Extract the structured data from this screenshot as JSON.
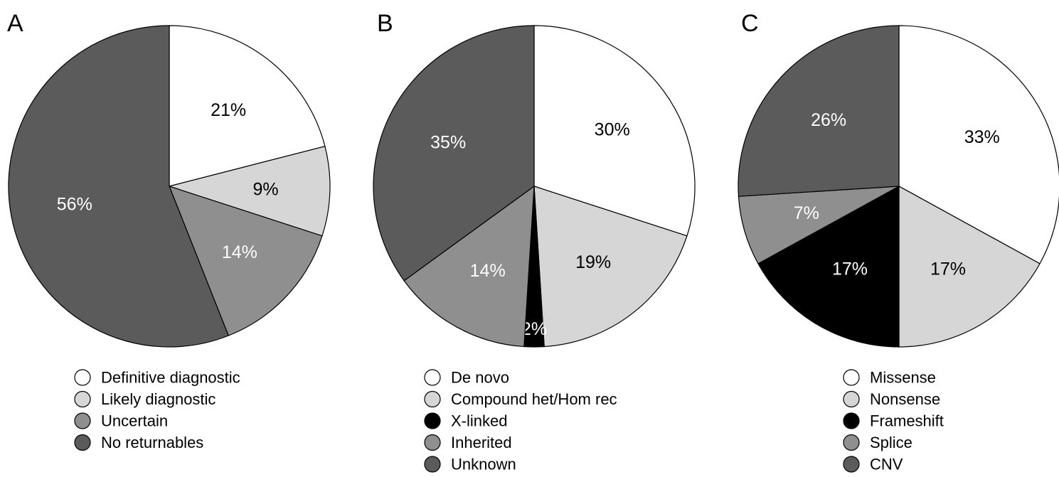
{
  "chart_data": [
    {
      "type": "pie",
      "panel": "A",
      "title": "",
      "slices": [
        {
          "label": "Definitive diagnostic",
          "value": 21,
          "text": "21%",
          "color": "#ffffff",
          "text_color": "#000000"
        },
        {
          "label": "Likely diagnostic",
          "value": 9,
          "text": "9%",
          "color": "#d6d6d6",
          "text_color": "#000000"
        },
        {
          "label": "Uncertain",
          "value": 14,
          "text": "14%",
          "color": "#8f8f8f",
          "text_color": "#ffffff"
        },
        {
          "label": "No returnables",
          "value": 56,
          "text": "56%",
          "color": "#5b5b5b",
          "text_color": "#ffffff"
        }
      ],
      "legend": "bottom"
    },
    {
      "type": "pie",
      "panel": "B",
      "title": "",
      "slices": [
        {
          "label": "De novo",
          "value": 30,
          "text": "30%",
          "color": "#ffffff",
          "text_color": "#000000"
        },
        {
          "label": "Compound het/Hom rec",
          "value": 19,
          "text": "19%",
          "color": "#d6d6d6",
          "text_color": "#000000"
        },
        {
          "label": "X-linked",
          "value": 2,
          "text": "2%",
          "color": "#000000",
          "text_color": "#ffffff"
        },
        {
          "label": "Inherited",
          "value": 14,
          "text": "14%",
          "color": "#8f8f8f",
          "text_color": "#ffffff"
        },
        {
          "label": "Unknown",
          "value": 35,
          "text": "35%",
          "color": "#5b5b5b",
          "text_color": "#ffffff"
        }
      ],
      "legend": "bottom"
    },
    {
      "type": "pie",
      "panel": "C",
      "title": "",
      "slices": [
        {
          "label": "Missense",
          "value": 33,
          "text": "33%",
          "color": "#ffffff",
          "text_color": "#000000"
        },
        {
          "label": "Nonsense",
          "value": 17,
          "text": "17%",
          "color": "#d6d6d6",
          "text_color": "#000000"
        },
        {
          "label": "Frameshift",
          "value": 17,
          "text": "17%",
          "color": "#000000",
          "text_color": "#ffffff"
        },
        {
          "label": "Splice",
          "value": 7,
          "text": "7%",
          "color": "#8f8f8f",
          "text_color": "#ffffff"
        },
        {
          "label": "CNV",
          "value": 26,
          "text": "26%",
          "color": "#5b5b5b",
          "text_color": "#ffffff"
        }
      ],
      "legend": "bottom"
    }
  ]
}
